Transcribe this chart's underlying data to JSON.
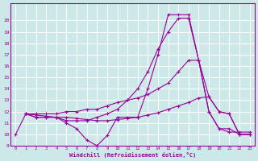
{
  "background_color": "#cce8e8",
  "grid_color": "#ffffff",
  "line_color": "#990099",
  "xlabel": "Windchill (Refroidissement éolien,°C)",
  "xlim": [
    -0.5,
    23.5
  ],
  "ylim": [
    9,
    21
  ],
  "yticks": [
    9,
    10,
    11,
    12,
    13,
    14,
    15,
    16,
    17,
    18,
    19,
    20
  ],
  "xticks": [
    0,
    1,
    2,
    3,
    4,
    5,
    6,
    7,
    8,
    9,
    10,
    11,
    12,
    13,
    14,
    15,
    16,
    17,
    18,
    19,
    20,
    21,
    22,
    23
  ],
  "lines": [
    {
      "x": [
        0,
        1,
        2,
        3,
        4,
        5,
        6,
        7,
        8,
        9,
        10,
        11,
        12,
        13,
        14,
        15,
        16,
        17,
        18,
        19,
        20,
        21,
        22,
        23
      ],
      "y": [
        10,
        11.8,
        11.5,
        11.5,
        11.5,
        11.0,
        10.5,
        9.5,
        9.0,
        9.9,
        11.5,
        11.5,
        11.5,
        14.0,
        17.0,
        20.5,
        20.5,
        20.5,
        16.5,
        12.0,
        10.5,
        10.5,
        10.0,
        10.0
      ]
    },
    {
      "x": [
        1,
        2,
        3,
        4,
        5,
        6,
        7,
        8,
        9,
        10,
        11,
        12,
        13,
        14,
        15,
        16,
        17,
        18,
        19,
        20,
        21,
        22,
        23
      ],
      "y": [
        11.8,
        11.5,
        11.5,
        11.5,
        11.2,
        11.2,
        11.2,
        11.5,
        11.8,
        12.2,
        13.0,
        14.0,
        15.5,
        17.5,
        19.0,
        20.2,
        20.2,
        16.5,
        13.3,
        12.0,
        11.8,
        10.0,
        10.0
      ]
    },
    {
      "x": [
        1,
        2,
        3,
        4,
        5,
        6,
        7,
        8,
        9,
        10,
        11,
        12,
        13,
        14,
        15,
        16,
        17,
        18,
        19,
        20,
        21,
        22,
        23
      ],
      "y": [
        11.8,
        11.8,
        11.8,
        11.8,
        12.0,
        12.0,
        12.2,
        12.2,
        12.5,
        12.8,
        13.0,
        13.2,
        13.5,
        14.0,
        14.5,
        15.5,
        16.5,
        16.5,
        12.0,
        10.5,
        10.2,
        10.2,
        10.2
      ]
    },
    {
      "x": [
        1,
        2,
        3,
        4,
        5,
        6,
        7,
        8,
        9,
        10,
        11,
        12,
        13,
        14,
        15,
        16,
        17,
        18,
        19,
        20,
        21,
        22,
        23
      ],
      "y": [
        11.8,
        11.7,
        11.6,
        11.5,
        11.5,
        11.4,
        11.3,
        11.2,
        11.2,
        11.3,
        11.4,
        11.5,
        11.7,
        11.9,
        12.2,
        12.5,
        12.8,
        13.2,
        13.3,
        12.0,
        11.8,
        10.0,
        10.0
      ]
    }
  ]
}
